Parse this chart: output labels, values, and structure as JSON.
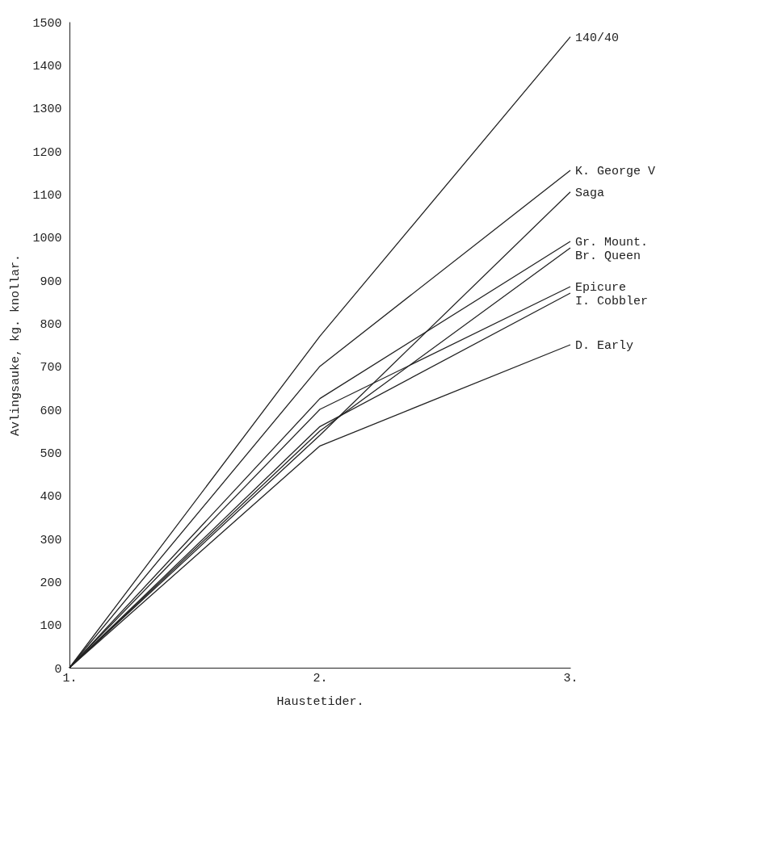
{
  "chart_data": {
    "type": "line",
    "xlabel": "Haustetider.",
    "ylabel": "Avlingsauke, kg. knollar.",
    "x": [
      1,
      2,
      3
    ],
    "xlim": [
      1,
      3
    ],
    "xticks": [
      {
        "value": 1,
        "label": "1."
      },
      {
        "value": 2,
        "label": "2."
      },
      {
        "value": 3,
        "label": "3."
      }
    ],
    "ylim": [
      0,
      1500
    ],
    "yticks": [
      0,
      100,
      200,
      300,
      400,
      500,
      600,
      700,
      800,
      900,
      1000,
      1100,
      1200,
      1300,
      1400,
      1500
    ],
    "grid": false,
    "legend": false,
    "marker": "none",
    "line_style": "solid",
    "series": [
      {
        "name": "140/40",
        "color": "#222222",
        "values": [
          0,
          770,
          1465
        ]
      },
      {
        "name": "K. George V",
        "color": "#222222",
        "values": [
          0,
          700,
          1155
        ]
      },
      {
        "name": "Saga",
        "color": "#222222",
        "values": [
          0,
          540,
          1105
        ]
      },
      {
        "name": "Gr. Mount.",
        "color": "#222222",
        "values": [
          0,
          625,
          990
        ]
      },
      {
        "name": "Br. Queen",
        "color": "#222222",
        "values": [
          0,
          550,
          975
        ]
      },
      {
        "name": "Epicure",
        "color": "#222222",
        "values": [
          0,
          600,
          885
        ]
      },
      {
        "name": "I. Cobbler",
        "color": "#222222",
        "values": [
          0,
          560,
          870
        ]
      },
      {
        "name": "D. Early",
        "color": "#222222",
        "values": [
          0,
          515,
          750
        ]
      }
    ]
  }
}
